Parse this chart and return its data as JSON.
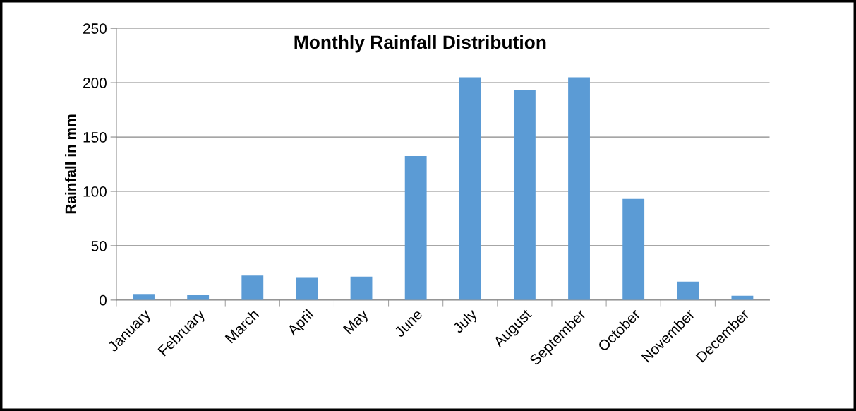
{
  "chart_data": {
    "type": "bar",
    "title": "Monthly Rainfall Distribution",
    "ylabel": "Rainfall in mm",
    "categories": [
      "January",
      "February",
      "March",
      "April",
      "May",
      "June",
      "July",
      "August",
      "September",
      "October",
      "November",
      "December"
    ],
    "values": [
      5,
      4.5,
      22.5,
      21,
      21.5,
      132.5,
      205,
      193.5,
      205,
      93,
      17,
      4
    ],
    "color": "#5b9bd5",
    "ylim": [
      0,
      250
    ],
    "yticks": [
      0,
      50,
      100,
      150,
      200,
      250
    ],
    "grid": "y",
    "legend": false
  }
}
